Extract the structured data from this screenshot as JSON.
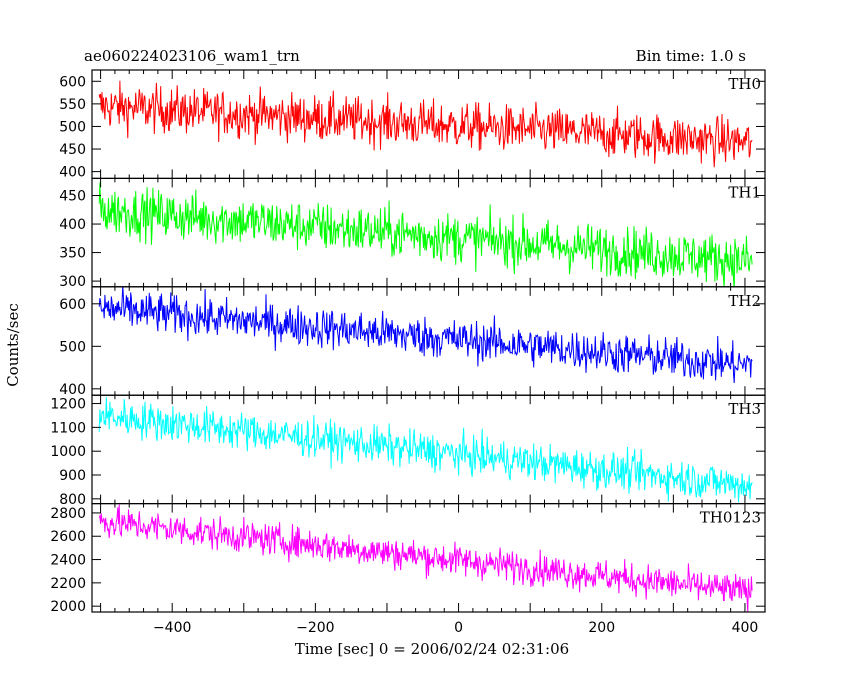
{
  "chart_data": {
    "type": "line",
    "title": "ae060224023106_wam1_trn",
    "subtitle": "Bin time: 1.0 s",
    "xlabel": "Time [sec] 0 = 2006/02/24 02:31:06",
    "ylabel": "Counts/sec",
    "xlim": [
      -512,
      428
    ],
    "x_ticks": [
      -400,
      -200,
      0,
      200,
      400
    ],
    "panels": [
      {
        "name": "TH0",
        "color": "#ff0000",
        "ylim": [
          385,
          625
        ],
        "y_ticks": [
          400,
          450,
          500,
          550,
          600
        ],
        "start": 545,
        "end": 465,
        "noise": 26
      },
      {
        "name": "TH1",
        "color": "#00ff00",
        "ylim": [
          290,
          480
        ],
        "y_ticks": [
          300,
          350,
          400,
          450
        ],
        "start": 425,
        "end": 335,
        "noise": 22
      },
      {
        "name": "TH2",
        "color": "#0000ff",
        "ylim": [
          385,
          640
        ],
        "y_ticks": [
          400,
          500,
          600
        ],
        "start": 590,
        "end": 455,
        "noise": 24
      },
      {
        "name": "TH3",
        "color": "#00ffff",
        "ylim": [
          780,
          1235
        ],
        "y_ticks": [
          800,
          900,
          1000,
          1100,
          1200
        ],
        "start": 1150,
        "end": 855,
        "noise": 40
      },
      {
        "name": "TH0123",
        "color": "#ff00ff",
        "ylim": [
          1950,
          2880
        ],
        "y_ticks": [
          2000,
          2200,
          2400,
          2600,
          2800
        ],
        "start": 2730,
        "end": 2120,
        "noise": 70
      }
    ],
    "bin_time": 1.0,
    "grid": false
  }
}
